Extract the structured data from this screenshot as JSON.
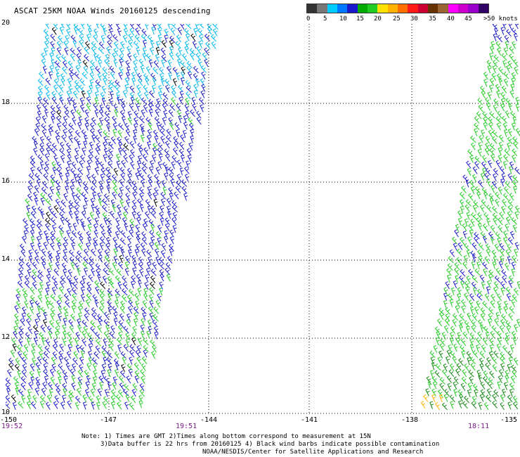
{
  "title": "ASCAT 25KM NOAA Winds 20160125 descending",
  "wind_scale": {
    "colors": [
      "#333333",
      "#777777",
      "#00ccff",
      "#0077ff",
      "#1a1acc",
      "#00aa00",
      "#22cc22",
      "#ffe000",
      "#ffb000",
      "#ff7000",
      "#ff1a1a",
      "#cc0033",
      "#663300",
      "#996633",
      "#ff00ff",
      "#cc00cc",
      "#9900cc",
      "#330066"
    ],
    "labels": [
      "0",
      "5",
      "10",
      "15",
      "20",
      "25",
      "30",
      "35",
      "40",
      "45",
      ">50 knots"
    ]
  },
  "axes": {
    "lat_labels": [
      "20",
      "18",
      "16",
      "14",
      "12",
      "10"
    ],
    "lon_labels": [
      "-150",
      "-147",
      "-144",
      "-141",
      "-138",
      "-135"
    ]
  },
  "pass_times": [
    "19:52",
    "19:51",
    "18:11"
  ],
  "notes": [
    "Note: 1) Times are GMT 2)Times along bottom correspond to measurement at 15N",
    "3)Data buffer is 22 hrs from 20160125 4) Black wind barbs indicate possible contamination",
    "NOAA/NESDIS/Center for Satellite Applications and Research"
  ]
}
